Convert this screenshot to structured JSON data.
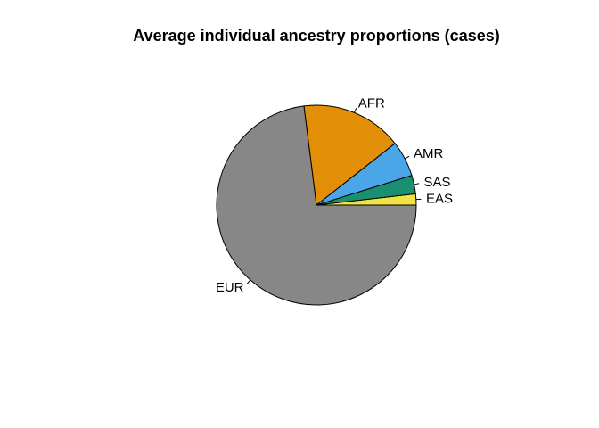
{
  "chart_data": {
    "type": "pie",
    "title": "Average individual ancestry proportions (cases)",
    "slices": [
      {
        "label": "EAS",
        "value": 0.018,
        "color": "#F0E442"
      },
      {
        "label": "SAS",
        "value": 0.03,
        "color": "#1A9070"
      },
      {
        "label": "AMR",
        "value": 0.058,
        "color": "#4AA6E6"
      },
      {
        "label": "AFR",
        "value": 0.164,
        "color": "#E38E07"
      },
      {
        "label": "EUR",
        "value": 0.73,
        "color": "#878787"
      }
    ],
    "start_angle_deg": 0,
    "direction": "counterclockwise",
    "legend": "none",
    "slice_border_color": "#000000"
  }
}
